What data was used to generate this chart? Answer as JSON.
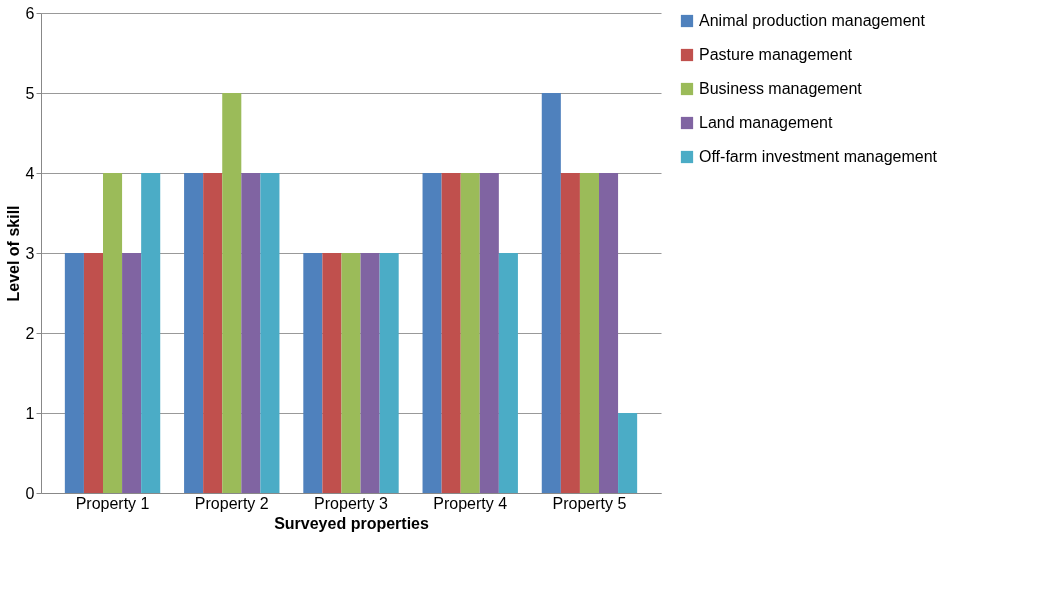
{
  "chart_data": {
    "type": "bar",
    "xlabel": "Surveyed properties",
    "ylabel": "Level of skill",
    "categories": [
      "Property 1",
      "Property 2",
      "Property 3",
      "Property 4",
      "Property 5"
    ],
    "series": [
      {
        "name": "Animal production management",
        "color": "#4f81bd",
        "values": [
          3,
          4,
          3,
          4,
          5
        ]
      },
      {
        "name": "Pasture management",
        "color": "#c0504d",
        "values": [
          3,
          4,
          3,
          4,
          4
        ]
      },
      {
        "name": "Business management",
        "color": "#9bbb59",
        "values": [
          4,
          5,
          3,
          4,
          4
        ]
      },
      {
        "name": "Land management",
        "color": "#8064a2",
        "values": [
          3,
          4,
          3,
          4,
          4
        ]
      },
      {
        "name": "Off-farm investment management",
        "color": "#4bacc6",
        "values": [
          4,
          4,
          3,
          3,
          1
        ]
      }
    ],
    "ylim": [
      0,
      6
    ],
    "yticks": [
      0,
      1,
      2,
      3,
      4,
      5,
      6
    ],
    "grid": "y",
    "legend": "right"
  }
}
